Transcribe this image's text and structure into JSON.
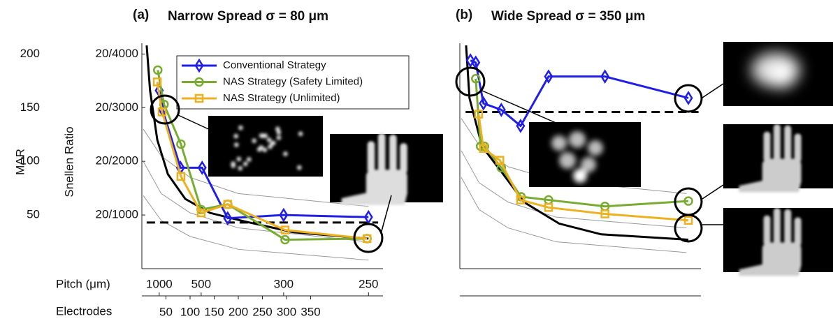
{
  "chart_data": [
    {
      "type": "line",
      "panel_label": "(a)",
      "title": "Narrow Spread σ = 80 μm",
      "ylabel": "MAR",
      "y2label": "Snellen Ratio",
      "x2label": "Pitch (μm)",
      "xlabel": "Electrodes",
      "xlim": [
        0,
        500
      ],
      "ylim": [
        0,
        210
      ],
      "xticks": [
        50,
        100,
        150,
        200,
        250,
        300,
        350
      ],
      "x2ticks": [
        {
          "value": 36,
          "label": "1000"
        },
        {
          "value": 123,
          "label": "500"
        },
        {
          "value": 294,
          "label": "300"
        },
        {
          "value": 470,
          "label": "250"
        }
      ],
      "yticks": [
        50,
        100,
        150,
        200
      ],
      "y2ticks": [
        {
          "value": 50,
          "label": "20/1000"
        },
        {
          "value": 100,
          "label": "20/2000"
        },
        {
          "value": 150,
          "label": "20/3000"
        },
        {
          "value": 200,
          "label": "20/4000"
        }
      ],
      "legend": "upper right",
      "series": [
        {
          "color": "#999999",
          "linewidth": 1,
          "x": [
            3,
            40,
            100,
            200,
            470
          ],
          "values": [
            68,
            45,
            30,
            18,
            8
          ]
        },
        {
          "color": "#999999",
          "linewidth": 1,
          "x": [
            3,
            40,
            100,
            200,
            470
          ],
          "values": [
            100,
            70,
            52,
            38,
            25
          ]
        },
        {
          "color": "#999999",
          "linewidth": 1,
          "x": [
            3,
            40,
            100,
            200,
            470
          ],
          "values": [
            130,
            105,
            85,
            70,
            58
          ]
        },
        {
          "color": "#000000",
          "linewidth": 3,
          "x": [
            10,
            17,
            32,
            54,
            90,
            141,
            213,
            314,
            470
          ],
          "values": [
            208,
            166,
            120,
            88,
            65,
            52,
            44,
            34,
            28
          ]
        },
        {
          "color": "#000000",
          "linewidth": 3,
          "dash": true,
          "x": [
            10,
            490
          ],
          "values": [
            43,
            43
          ]
        },
        {
          "name": "Conventional Strategy",
          "color": "#1f1fe6",
          "linewidth": 3,
          "marker": "diamond",
          "x": [
            36,
            43,
            80,
            125,
            178,
            294,
            470
          ],
          "values": [
            166,
            148,
            94,
            94,
            47,
            50,
            48
          ]
        },
        {
          "name": "NAS Strategy (Safety Limited)",
          "color": "#77ac30",
          "linewidth": 3,
          "marker": "circle",
          "x": [
            33,
            46,
            81,
            123,
            178,
            297,
            467
          ],
          "values": [
            185,
            153,
            116,
            55,
            60,
            27,
            28
          ]
        },
        {
          "name": "NAS Strategy (Unlimited)",
          "color": "#edb120",
          "linewidth": 3,
          "marker": "square",
          "x": [
            32,
            42,
            81,
            123,
            178,
            297,
            467
          ],
          "values": [
            174,
            146,
            86,
            52,
            60,
            36,
            28
          ]
        }
      ]
    },
    {
      "type": "line",
      "panel_label": "(b)",
      "title": "Wide Spread σ = 350 μm",
      "xlim": [
        0,
        500
      ],
      "ylim": [
        0,
        210
      ],
      "series": [
        {
          "color": "#999999",
          "linewidth": 1,
          "x": [
            3,
            40,
            100,
            200,
            470
          ],
          "values": [
            85,
            55,
            38,
            25,
            15
          ]
        },
        {
          "color": "#999999",
          "linewidth": 1,
          "x": [
            3,
            40,
            100,
            200,
            470
          ],
          "values": [
            110,
            80,
            62,
            48,
            38
          ]
        },
        {
          "color": "#999999",
          "linewidth": 1,
          "x": [
            3,
            40,
            100,
            200,
            470
          ],
          "values": [
            140,
            115,
            95,
            82,
            70
          ]
        },
        {
          "color": "#000000",
          "linewidth": 3,
          "x": [
            13,
            20,
            46,
            90,
            133,
            206,
            293,
            474
          ],
          "values": [
            208,
            159,
            114,
            88,
            62,
            42,
            32,
            27
          ]
        },
        {
          "color": "#000000",
          "linewidth": 3,
          "dash": true,
          "x": [
            12,
            495
          ],
          "values": [
            146,
            146
          ]
        },
        {
          "color": "#1f1fe6",
          "linewidth": 3,
          "marker": "diamond",
          "x": [
            22,
            33,
            49,
            86,
            126,
            184,
            301,
            474
          ],
          "values": [
            194,
            192,
            154,
            148,
            133,
            179,
            179,
            159
          ]
        },
        {
          "color": "#77ac30",
          "linewidth": 3,
          "marker": "circle",
          "x": [
            33,
            43,
            51,
            86,
            127,
            184,
            301,
            474
          ],
          "values": [
            177,
            114,
            114,
            94,
            67,
            64,
            58,
            63
          ]
        },
        {
          "color": "#edb120",
          "linewidth": 3,
          "marker": "square",
          "x": [
            39,
            49,
            83,
            126,
            184,
            301,
            474
          ],
          "values": [
            144,
            112,
            101,
            64,
            57,
            51,
            45
          ]
        }
      ]
    }
  ]
}
